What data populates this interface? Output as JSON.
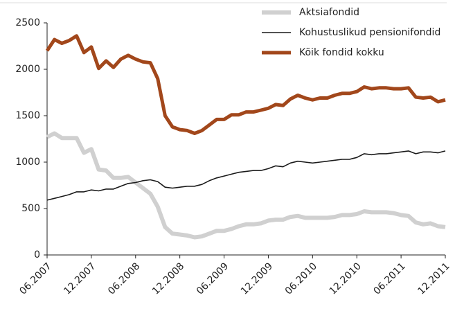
{
  "chart_data": {
    "type": "line",
    "categories": [
      "06.2007",
      null,
      null,
      null,
      null,
      null,
      "12.2007",
      null,
      null,
      null,
      null,
      null,
      "06.2008",
      null,
      null,
      null,
      null,
      null,
      "12.2008",
      null,
      null,
      null,
      null,
      null,
      "06.2009",
      null,
      null,
      null,
      null,
      null,
      "12.2009",
      null,
      null,
      null,
      null,
      null,
      "06.2010",
      null,
      null,
      null,
      null,
      null,
      "12.2010",
      null,
      null,
      null,
      null,
      null,
      "06.2011",
      null,
      null,
      null,
      null,
      null,
      "12.2011"
    ],
    "series": [
      {
        "name": "Aktsiafondid",
        "color": "#d0d0d0",
        "values": [
          1270,
          1310,
          1260,
          1260,
          1260,
          1100,
          1140,
          920,
          910,
          830,
          830,
          840,
          780,
          720,
          660,
          520,
          300,
          230,
          220,
          210,
          190,
          200,
          230,
          260,
          260,
          280,
          310,
          330,
          330,
          340,
          370,
          380,
          380,
          410,
          420,
          400,
          400,
          400,
          400,
          410,
          430,
          430,
          440,
          470,
          460,
          460,
          460,
          450,
          430,
          420,
          350,
          330,
          340,
          310,
          300
        ]
      },
      {
        "name": "Kohustuslikud pensionifondid",
        "color": "#1a1a1a",
        "values": [
          590,
          610,
          630,
          650,
          680,
          680,
          700,
          690,
          710,
          710,
          740,
          770,
          780,
          800,
          810,
          790,
          730,
          720,
          730,
          740,
          740,
          760,
          800,
          830,
          850,
          870,
          890,
          900,
          910,
          910,
          930,
          960,
          950,
          990,
          1010,
          1000,
          990,
          1000,
          1010,
          1020,
          1030,
          1030,
          1050,
          1090,
          1080,
          1090,
          1090,
          1100,
          1110,
          1120,
          1090,
          1110,
          1110,
          1100,
          1120
        ]
      },
      {
        "name": "Kõik fondid kokku",
        "color": "#a2471b",
        "values": [
          2200,
          2320,
          2280,
          2310,
          2360,
          2180,
          2240,
          2010,
          2090,
          2020,
          2110,
          2150,
          2110,
          2080,
          2070,
          1900,
          1500,
          1380,
          1350,
          1340,
          1310,
          1340,
          1400,
          1460,
          1460,
          1510,
          1510,
          1540,
          1540,
          1560,
          1580,
          1620,
          1610,
          1680,
          1720,
          1690,
          1670,
          1690,
          1690,
          1720,
          1740,
          1740,
          1760,
          1810,
          1790,
          1800,
          1800,
          1790,
          1790,
          1800,
          1700,
          1690,
          1700,
          1650,
          1670
        ]
      }
    ],
    "ylim": [
      0,
      2500
    ],
    "yticks": [
      0,
      500,
      1000,
      1500,
      2000,
      2500
    ],
    "grid": false,
    "legend": "top-right"
  }
}
